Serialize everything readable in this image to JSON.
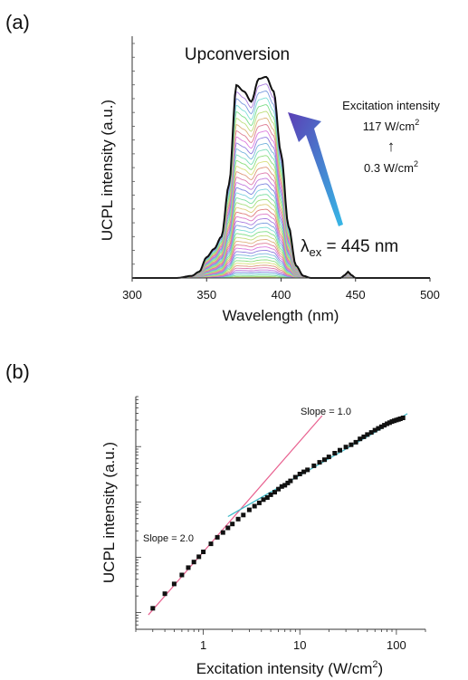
{
  "chart_data": [
    {
      "type": "line",
      "panel": "(a)",
      "title": "Upconversion",
      "xlabel": "Wavelength (nm)",
      "ylabel": "UCPL intensity (a.u.)",
      "xlim": [
        300,
        500
      ],
      "xticks": [
        "300",
        "350",
        "400",
        "450",
        "500"
      ],
      "ylim": [
        0,
        1
      ],
      "grid": false,
      "spectrum_shape": {
        "x": [
          300,
          330,
          340,
          345,
          350,
          355,
          360,
          365,
          370,
          375,
          380,
          385,
          390,
          395,
          400,
          405,
          410,
          415,
          420,
          430,
          440,
          443,
          445,
          447,
          450,
          460,
          480,
          500
        ],
        "y": [
          0,
          0,
          0.01,
          0.03,
          0.1,
          0.14,
          0.2,
          0.45,
          0.93,
          0.9,
          0.85,
          0.96,
          0.97,
          0.9,
          0.6,
          0.25,
          0.06,
          0.01,
          0,
          0,
          0,
          0.015,
          0.03,
          0.015,
          0,
          0,
          0,
          0
        ]
      },
      "curve_count": 45,
      "series_annotation": {
        "excitation_title": "Excitation intensity",
        "high": "117 W/cm",
        "low": "0.3 W/cm",
        "unit_sup": "2",
        "arrow_glyph": "↑"
      },
      "lambda_annotation": {
        "symbol": "λ",
        "sub": "ex",
        "text": " = 445 nm"
      },
      "colors": {
        "envelope": "#111111",
        "arrow_top": "#5b3fb5",
        "arrow_bottom": "#36b8e6"
      }
    },
    {
      "type": "scatter",
      "panel": "(b)",
      "xlabel": "Excitation intensity (W/cm",
      "xlabel_sup": "2",
      "xlabel_end": ")",
      "ylabel": "UCPL intensity (a.u.)",
      "xscale": "log",
      "yscale": "log",
      "xlim": [
        0.2,
        200
      ],
      "ylim": [
        0.05,
        800
      ],
      "xticks": [
        "1",
        "10",
        "100"
      ],
      "points": {
        "x": [
          0.3,
          0.4,
          0.5,
          0.6,
          0.7,
          0.8,
          0.9,
          1.0,
          1.2,
          1.4,
          1.6,
          1.8,
          2.0,
          2.3,
          2.6,
          3.0,
          3.4,
          3.8,
          4.2,
          4.6,
          5.0,
          5.5,
          6.0,
          6.5,
          7.0,
          7.5,
          8.0,
          9.0,
          10,
          11,
          12,
          14,
          16,
          18,
          20,
          23,
          26,
          30,
          34,
          38,
          42,
          46,
          50,
          55,
          60,
          65,
          70,
          75,
          80,
          85,
          90,
          95,
          100,
          105,
          110,
          117
        ],
        "y": [
          0.12,
          0.22,
          0.33,
          0.48,
          0.65,
          0.82,
          1.02,
          1.25,
          1.75,
          2.3,
          2.8,
          3.4,
          4.0,
          4.9,
          5.8,
          7.2,
          8.4,
          9.6,
          11,
          12,
          13.5,
          15,
          17,
          19,
          20,
          22,
          24,
          28,
          32,
          35,
          38,
          45,
          52,
          58,
          65,
          76,
          86,
          98,
          108,
          120,
          138,
          150,
          165,
          180,
          198,
          213,
          228,
          243,
          258,
          270,
          283,
          293,
          302,
          310,
          318,
          330
        ]
      },
      "fit_lines": [
        {
          "label": "Slope = 2.0",
          "slope": 2.0,
          "x_range": [
            0.27,
            17
          ],
          "anchor": [
            1,
            1.25
          ],
          "color": "#e8608f"
        },
        {
          "label": "Slope = 1.0",
          "slope": 1.0,
          "x_range": [
            1.8,
            130
          ],
          "anchor": [
            100,
            302
          ],
          "color": "#3db9c7"
        }
      ],
      "colors": {
        "points": "#111111"
      }
    }
  ]
}
